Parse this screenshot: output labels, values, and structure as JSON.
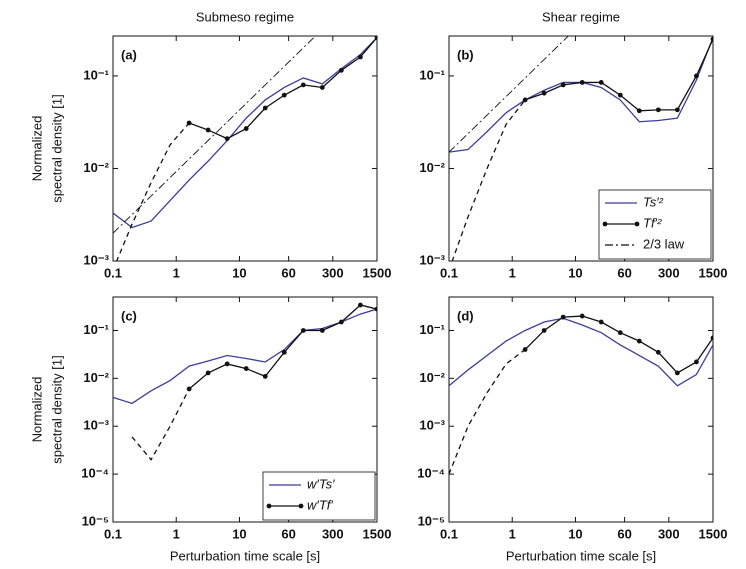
{
  "chart_data": [
    {
      "type": "line",
      "title": "Submeso regime",
      "label": "(a)",
      "ylabel": [
        "Normalized",
        "spectral density [1]"
      ],
      "log_x": true,
      "log_y": true,
      "xlim": [
        0.1,
        1500
      ],
      "xticks": [
        0.1,
        1,
        10,
        60,
        300,
        1500
      ],
      "ylim": [
        0.001,
        0.27
      ],
      "yticks": [
        {
          "value": 0.001,
          "label": "10⁻³"
        },
        {
          "value": 0.01,
          "label": "10⁻²"
        },
        {
          "value": 0.1,
          "label": "10⁻¹"
        }
      ],
      "series": [
        {
          "name": "Ts′²",
          "color": "#3a3f9a",
          "x": [
            0.1,
            0.2,
            0.4,
            0.8,
            1.6,
            3.2,
            6.4,
            12.8,
            25.6,
            51.2,
            102.4,
            204.8,
            409.6,
            819.2,
            1500
          ],
          "values": [
            0.0033,
            0.0023,
            0.0027,
            0.0045,
            0.0075,
            0.012,
            0.02,
            0.035,
            0.055,
            0.075,
            0.095,
            0.082,
            0.12,
            0.17,
            0.26
          ]
        },
        {
          "name": "Tf′²",
          "color": "#111111",
          "dashed_before": 4,
          "markers": true,
          "x": [
            0.1,
            0.2,
            0.4,
            0.8,
            1.6,
            3.2,
            6.4,
            12.8,
            25.6,
            51.2,
            102.4,
            204.8,
            409.6,
            819.2,
            1500
          ],
          "values": [
            0.0008,
            0.0025,
            0.007,
            0.018,
            0.031,
            0.026,
            0.021,
            0.027,
            0.045,
            0.062,
            0.08,
            0.075,
            0.115,
            0.16,
            0.26
          ]
        },
        {
          "name": "2/3 law",
          "color": "#111111",
          "dash": "dashdot",
          "x": [
            0.1,
            1500
          ],
          "values": [
            0.002,
            1.2
          ]
        }
      ]
    },
    {
      "type": "line",
      "title": "Shear regime",
      "label": "(b)",
      "legend": "lower right",
      "log_x": true,
      "log_y": true,
      "xlim": [
        0.1,
        1500
      ],
      "xticks": [
        0.1,
        1,
        10,
        60,
        300,
        1500
      ],
      "ylim": [
        0.001,
        0.27
      ],
      "yticks": [
        {
          "value": 0.001,
          "label": "10⁻³"
        },
        {
          "value": 0.01,
          "label": "10⁻²"
        },
        {
          "value": 0.1,
          "label": "10⁻¹"
        }
      ],
      "series": [
        {
          "name": "Ts′²",
          "color": "#3a3f9a",
          "x": [
            0.1,
            0.2,
            0.4,
            0.8,
            1.6,
            3.2,
            6.4,
            12.8,
            25.6,
            51.2,
            102.4,
            204.8,
            409.6,
            819.2,
            1500
          ],
          "values": [
            0.015,
            0.016,
            0.025,
            0.04,
            0.055,
            0.07,
            0.085,
            0.085,
            0.075,
            0.055,
            0.032,
            0.033,
            0.035,
            0.09,
            0.26
          ]
        },
        {
          "name": "Tf′²",
          "color": "#111111",
          "dashed_before": 4,
          "markers": true,
          "x": [
            0.1,
            0.2,
            0.4,
            0.8,
            1.6,
            3.2,
            6.4,
            12.8,
            25.6,
            51.2,
            102.4,
            204.8,
            409.6,
            819.2,
            1500
          ],
          "values": [
            0.0008,
            0.003,
            0.01,
            0.03,
            0.055,
            0.065,
            0.08,
            0.085,
            0.085,
            0.062,
            0.042,
            0.043,
            0.043,
            0.1,
            0.25
          ]
        },
        {
          "name": "2/3 law",
          "color": "#111111",
          "dash": "dashdot",
          "x": [
            0.1,
            1500
          ],
          "values": [
            0.015,
            9
          ]
        }
      ]
    },
    {
      "type": "line",
      "label": "(c)",
      "legend": "lower right",
      "ylabel": [
        "Normalized",
        "spectral density [1]"
      ],
      "xlabel": "Perturbation time scale [s]",
      "log_x": true,
      "log_y": true,
      "xlim": [
        0.1,
        1500
      ],
      "xticks": [
        0.1,
        1,
        10,
        60,
        300,
        1500
      ],
      "ylim": [
        1e-05,
        0.5
      ],
      "yticks": [
        {
          "value": 1e-05,
          "label": "10⁻⁵"
        },
        {
          "value": 0.0001,
          "label": "10⁻⁴"
        },
        {
          "value": 0.001,
          "label": "10⁻³"
        },
        {
          "value": 0.01,
          "label": "10⁻²"
        },
        {
          "value": 0.1,
          "label": "10⁻¹"
        }
      ],
      "series": [
        {
          "name": "w′Ts′",
          "color": "#3a3f9a",
          "x": [
            0.1,
            0.2,
            0.4,
            0.8,
            1.6,
            3.2,
            6.4,
            12.8,
            25.6,
            51.2,
            102.4,
            204.8,
            409.6,
            819.2,
            1500
          ],
          "values": [
            0.004,
            0.003,
            0.0055,
            0.009,
            0.018,
            0.023,
            0.03,
            0.026,
            0.022,
            0.04,
            0.1,
            0.11,
            0.15,
            0.22,
            0.28
          ]
        },
        {
          "name": "w′Tf′",
          "color": "#111111",
          "dashed_before": 4,
          "markers": true,
          "x": [
            0.1,
            0.2,
            0.4,
            0.8,
            1.6,
            3.2,
            6.4,
            12.8,
            25.6,
            51.2,
            102.4,
            204.8,
            409.6,
            819.2,
            1500
          ],
          "values": [
            null,
            0.0006,
            0.0002,
            0.001,
            0.006,
            0.013,
            0.02,
            0.016,
            0.011,
            0.035,
            0.1,
            0.1,
            0.15,
            0.34,
            0.28
          ]
        }
      ]
    },
    {
      "type": "line",
      "label": "(d)",
      "xlabel": "Perturbation time scale [s]",
      "log_x": true,
      "log_y": true,
      "xlim": [
        0.1,
        1500
      ],
      "xticks": [
        0.1,
        1,
        10,
        60,
        300,
        1500
      ],
      "ylim": [
        1e-05,
        0.5
      ],
      "yticks": [
        {
          "value": 1e-05,
          "label": "10⁻⁵"
        },
        {
          "value": 0.0001,
          "label": "10⁻⁴"
        },
        {
          "value": 0.001,
          "label": "10⁻³"
        },
        {
          "value": 0.01,
          "label": "10⁻²"
        },
        {
          "value": 0.1,
          "label": "10⁻¹"
        }
      ],
      "series": [
        {
          "name": "w′Ts′",
          "color": "#3a3f9a",
          "x": [
            0.1,
            0.2,
            0.4,
            0.8,
            1.6,
            3.2,
            6.4,
            12.8,
            25.6,
            51.2,
            102.4,
            204.8,
            409.6,
            819.2,
            1500
          ],
          "values": [
            0.007,
            0.015,
            0.03,
            0.06,
            0.1,
            0.15,
            0.18,
            0.13,
            0.09,
            0.05,
            0.03,
            0.018,
            0.007,
            0.012,
            0.05
          ]
        },
        {
          "name": "w′Tf′",
          "color": "#111111",
          "dashed_before": 4,
          "markers": true,
          "x": [
            0.1,
            0.2,
            0.4,
            0.8,
            1.6,
            3.2,
            6.4,
            12.8,
            25.6,
            51.2,
            102.4,
            204.8,
            409.6,
            819.2,
            1500
          ],
          "values": [
            0.0001,
            0.001,
            0.005,
            0.02,
            0.04,
            0.1,
            0.19,
            0.2,
            0.15,
            0.09,
            0.06,
            0.035,
            0.013,
            0.022,
            0.07
          ]
        }
      ]
    }
  ]
}
